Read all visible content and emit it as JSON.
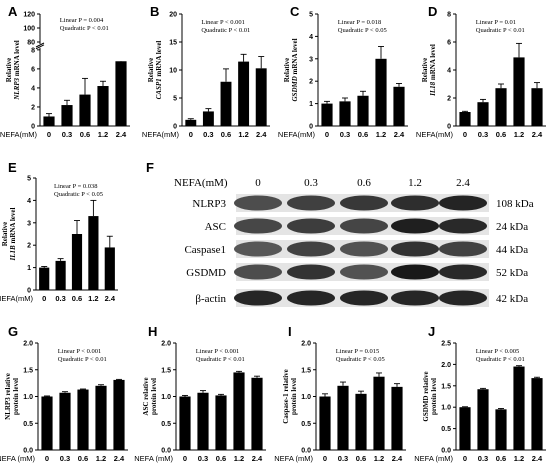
{
  "chart_data": [
    {
      "panel": "A",
      "type": "bar",
      "ylabel_line1": "Relative",
      "ylabel_line2": "NLRP3",
      "ylabel_line3": "mRNA level",
      "xlabel": "NEFA(mM)",
      "categories": [
        "0",
        "0.3",
        "0.6",
        "1.2",
        "2.4"
      ],
      "values": [
        1.0,
        2.2,
        3.3,
        4.2,
        6.8
      ],
      "errors": [
        0.3,
        0.5,
        1.7,
        0.5,
        1.5
      ],
      "broken_axis": true,
      "yticks_lower": [
        "0",
        "2",
        "4",
        "6",
        "8"
      ],
      "yticks_upper": [
        "80",
        "100",
        "120"
      ],
      "stats_line1": "Linear P = 0.004",
      "stats_line2": "Quadratic P < 0.01"
    },
    {
      "panel": "B",
      "type": "bar",
      "ylabel_line1": "Relative",
      "ylabel_line2": "CASP1",
      "ylabel_line3": "mRNA level",
      "xlabel": "NEFA(mM)",
      "categories": [
        "0",
        "0.3",
        "0.6",
        "1.2",
        "2.4"
      ],
      "values": [
        1.1,
        2.6,
        7.9,
        11.5,
        10.3
      ],
      "errors": [
        0.2,
        0.5,
        2.3,
        1.3,
        2.1
      ],
      "ylim": [
        0,
        20
      ],
      "yticks": [
        "0",
        "5",
        "10",
        "15",
        "20"
      ],
      "stats_line1": "Linear P < 0.001",
      "stats_line2": "Quadratic P < 0.01"
    },
    {
      "panel": "C",
      "type": "bar",
      "ylabel_line1": "Relative",
      "ylabel_line2": "GSDMD",
      "ylabel_line3": "mRNA level",
      "xlabel": "NEFA(mM)",
      "categories": [
        "0",
        "0.3",
        "0.6",
        "1.2",
        "2.4"
      ],
      "values": [
        1.0,
        1.1,
        1.35,
        3.0,
        1.75
      ],
      "errors": [
        0.1,
        0.15,
        0.2,
        0.55,
        0.15
      ],
      "ylim": [
        0,
        5
      ],
      "yticks": [
        "0",
        "1",
        "2",
        "3",
        "4",
        "5"
      ],
      "stats_line1": "Linear P = 0.018",
      "stats_line2": "Quadratic P < 0.05"
    },
    {
      "panel": "D",
      "type": "bar",
      "ylabel_line1": "Relative",
      "ylabel_line2": "IL18",
      "ylabel_line3": "mRNA level",
      "xlabel": "NEFA(mM)",
      "categories": [
        "0",
        "0.3",
        "0.6",
        "1.2",
        "2.4"
      ],
      "values": [
        1.0,
        1.7,
        2.7,
        4.9,
        2.7
      ],
      "errors": [
        0.05,
        0.2,
        0.3,
        1.0,
        0.4
      ],
      "ylim": [
        0,
        8
      ],
      "yticks": [
        "0",
        "2",
        "4",
        "6",
        "8"
      ],
      "stats_line1": "Linear P = 0.01",
      "stats_line2": "Quadratic P < 0.01"
    },
    {
      "panel": "E",
      "type": "bar",
      "ylabel_line1": "Relative",
      "ylabel_line2": "IL1B",
      "ylabel_line3": "mRNA level",
      "xlabel": "NEFA(mM)",
      "categories": [
        "0",
        "0.3",
        "0.6",
        "1.2",
        "2.4"
      ],
      "values": [
        1.0,
        1.3,
        2.5,
        3.3,
        1.9
      ],
      "errors": [
        0.05,
        0.1,
        0.6,
        0.7,
        0.5
      ],
      "ylim": [
        0,
        5
      ],
      "yticks": [
        "0",
        "1",
        "2",
        "3",
        "4",
        "5"
      ],
      "stats_line1": "Linear P = 0.038",
      "stats_line2": "Quadratic P < 0.05"
    },
    {
      "panel": "G",
      "type": "bar",
      "ylabel_line1": "NLRP3 relative",
      "ylabel_line2": "protein level",
      "xlabel": "NEFA (mM)",
      "categories": [
        "0",
        "0.3",
        "0.6",
        "1.2",
        "2.4"
      ],
      "values": [
        1.0,
        1.07,
        1.13,
        1.2,
        1.31
      ],
      "errors": [
        0.01,
        0.02,
        0.01,
        0.02,
        0.01
      ],
      "ylim": [
        0,
        2.0
      ],
      "yticks": [
        "0.0",
        "0.5",
        "1.0",
        "1.5",
        "2.0"
      ],
      "stats_line1": "Linear P < 0.001",
      "stats_line2": "Quadratic P < 0.01"
    },
    {
      "panel": "H",
      "type": "bar",
      "ylabel_line1": "ASC relative",
      "ylabel_line2": "protein level",
      "xlabel": "NEFA (mM)",
      "categories": [
        "0",
        "0.3",
        "0.6",
        "1.2",
        "2.4"
      ],
      "values": [
        1.0,
        1.07,
        1.02,
        1.45,
        1.35
      ],
      "errors": [
        0.02,
        0.04,
        0.02,
        0.02,
        0.03
      ],
      "ylim": [
        0,
        2.0
      ],
      "yticks": [
        "0.0",
        "0.5",
        "1.0",
        "1.5",
        "2.0"
      ],
      "stats_line1": "Linear P < 0.001",
      "stats_line2": "Quadratic P < 0.01"
    },
    {
      "panel": "I",
      "type": "bar",
      "ylabel_line1": "Caspase-1 relative",
      "ylabel_line2": "protein level",
      "xlabel": "NEFA (mM)",
      "categories": [
        "0",
        "0.3",
        "0.6",
        "1.2",
        "2.4"
      ],
      "values": [
        1.0,
        1.2,
        1.05,
        1.37,
        1.18
      ],
      "errors": [
        0.05,
        0.07,
        0.05,
        0.07,
        0.06
      ],
      "ylim": [
        0,
        2.0
      ],
      "yticks": [
        "0.0",
        "0.5",
        "1.0",
        "1.5",
        "2.0"
      ],
      "stats_line1": "Linear P = 0.015",
      "stats_line2": "Quadratic P < 0.05"
    },
    {
      "panel": "J",
      "type": "bar",
      "ylabel_line1": "GSDMD relative",
      "ylabel_line2": "protein level",
      "xlabel": "NEFA (mM)",
      "categories": [
        "0",
        "0.3",
        "0.6",
        "1.2",
        "2.4"
      ],
      "values": [
        1.0,
        1.42,
        0.95,
        1.95,
        1.68
      ],
      "errors": [
        0.01,
        0.02,
        0.02,
        0.02,
        0.02
      ],
      "ylim": [
        0,
        2.5
      ],
      "yticks": [
        "0.0",
        "0.5",
        "1.0",
        "1.5",
        "2.0",
        "2.5"
      ],
      "stats_line1": "Linear P < 0.005",
      "stats_line2": "Quadratic P < 0.01"
    }
  ],
  "blot": {
    "panel": "F",
    "header_label": "NEFA(mM)",
    "lanes": [
      "0",
      "0.3",
      "0.6",
      "1.2",
      "2.4"
    ],
    "rows": [
      {
        "name": "NLRP3",
        "kda": "108 kDa",
        "intensity": [
          0.7,
          0.75,
          0.78,
          0.82,
          0.86
        ]
      },
      {
        "name": "ASC",
        "kda": "24 kDa",
        "intensity": [
          0.72,
          0.76,
          0.73,
          0.88,
          0.84
        ]
      },
      {
        "name": "Caspase1",
        "kda": "44 kDa",
        "intensity": [
          0.66,
          0.74,
          0.68,
          0.8,
          0.74
        ]
      },
      {
        "name": "GSDMD",
        "kda": "52 kDa",
        "intensity": [
          0.7,
          0.8,
          0.68,
          0.9,
          0.84
        ]
      },
      {
        "name": "β-actin",
        "kda": "42 kDa",
        "intensity": [
          0.85,
          0.85,
          0.85,
          0.85,
          0.85
        ]
      }
    ]
  },
  "panel_letters": [
    "A",
    "B",
    "C",
    "D",
    "E",
    "F",
    "G",
    "H",
    "I",
    "J"
  ]
}
